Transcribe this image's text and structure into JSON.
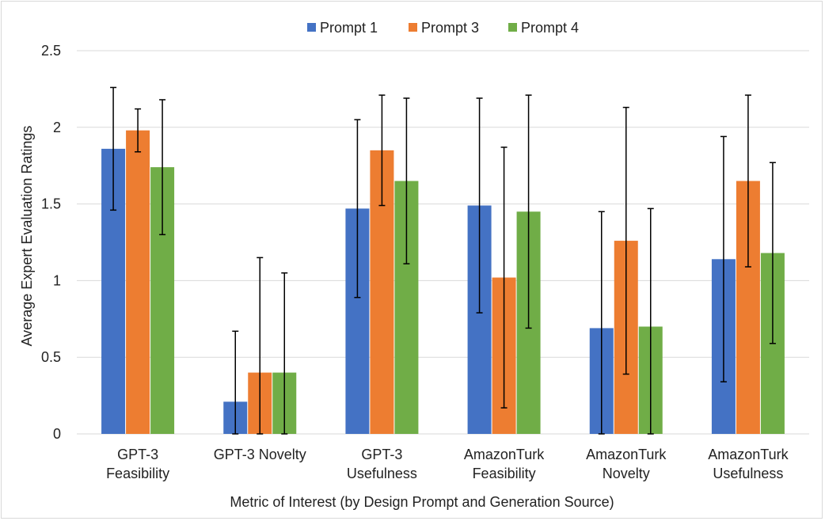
{
  "chart_data": {
    "type": "bar",
    "title": "",
    "xlabel": "Metric of Interest (by Design Prompt and Generation Source)",
    "ylabel": "Average Expert Evaluation Ratings",
    "ylim": [
      0,
      2.5
    ],
    "yticks": [
      "0",
      "0.5",
      "1",
      "1.5",
      "2",
      "2.5"
    ],
    "categories": [
      [
        "GPT-3",
        "Feasibility"
      ],
      [
        "GPT-3 Novelty"
      ],
      [
        "GPT-3",
        "Usefulness"
      ],
      [
        "AmazonTurk",
        "Feasibility"
      ],
      [
        "AmazonTurk",
        "Novelty"
      ],
      [
        "AmazonTurk",
        "Usefulness"
      ]
    ],
    "series": [
      {
        "name": "Prompt 1",
        "color": "#4472c4",
        "values": [
          1.86,
          0.21,
          1.47,
          1.49,
          0.69,
          1.14
        ],
        "error_low": [
          1.46,
          0.0,
          0.89,
          0.79,
          0.0,
          0.34
        ],
        "error_high": [
          2.26,
          0.67,
          2.05,
          2.19,
          1.45,
          1.94
        ]
      },
      {
        "name": "Prompt 3",
        "color": "#ed7d31",
        "values": [
          1.98,
          0.4,
          1.85,
          1.02,
          1.26,
          1.65
        ],
        "error_low": [
          1.84,
          0.0,
          1.49,
          0.17,
          0.39,
          1.09
        ],
        "error_high": [
          2.12,
          1.15,
          2.21,
          1.87,
          2.13,
          2.21
        ]
      },
      {
        "name": "Prompt 4",
        "color": "#70ad47",
        "values": [
          1.74,
          0.4,
          1.65,
          1.45,
          0.7,
          1.18
        ],
        "error_low": [
          1.3,
          0.0,
          1.11,
          0.69,
          0.0,
          0.59
        ],
        "error_high": [
          2.18,
          1.05,
          2.19,
          2.21,
          1.47,
          1.77
        ]
      }
    ],
    "grid": true,
    "legend_position": "top-center"
  }
}
